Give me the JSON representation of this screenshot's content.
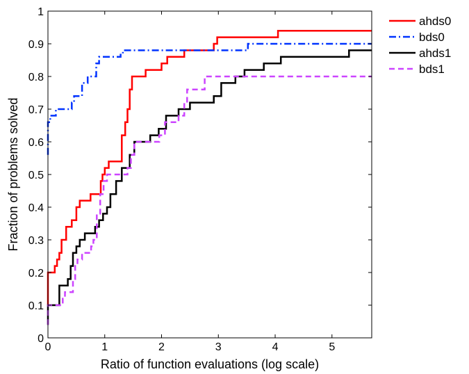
{
  "chart_data": {
    "type": "line",
    "title": "",
    "xlabel": "Ratio of function evaluations (log scale)",
    "ylabel": "Fraction of problems solved",
    "xlim": [
      0,
      5.7
    ],
    "ylim": [
      0,
      1
    ],
    "x_ticks": [
      0,
      1,
      2,
      3,
      4,
      5
    ],
    "y_ticks": [
      0,
      0.1,
      0.2,
      0.3,
      0.4,
      0.5,
      0.6,
      0.7,
      0.8,
      0.9,
      1
    ],
    "x_tick_labels": [
      "0",
      "1",
      "2",
      "3",
      "4",
      "5"
    ],
    "y_tick_labels": [
      "0",
      "0.1",
      "0.2",
      "0.3",
      "0.4",
      "0.5",
      "0.6",
      "0.7",
      "0.8",
      "0.9",
      "1"
    ],
    "grid": false,
    "legend_position": "outside-top-right",
    "series": [
      {
        "name": "ahds0",
        "color": "#ff0000",
        "style": "solid",
        "points": [
          [
            0,
            0.1
          ],
          [
            0,
            0.2
          ],
          [
            0.12,
            0.2
          ],
          [
            0.12,
            0.22
          ],
          [
            0.16,
            0.22
          ],
          [
            0.16,
            0.24
          ],
          [
            0.2,
            0.24
          ],
          [
            0.2,
            0.26
          ],
          [
            0.24,
            0.26
          ],
          [
            0.24,
            0.3
          ],
          [
            0.32,
            0.3
          ],
          [
            0.32,
            0.34
          ],
          [
            0.42,
            0.34
          ],
          [
            0.42,
            0.36
          ],
          [
            0.5,
            0.36
          ],
          [
            0.5,
            0.4
          ],
          [
            0.56,
            0.4
          ],
          [
            0.56,
            0.42
          ],
          [
            0.75,
            0.42
          ],
          [
            0.75,
            0.44
          ],
          [
            0.93,
            0.44
          ],
          [
            0.93,
            0.48
          ],
          [
            0.96,
            0.48
          ],
          [
            0.96,
            0.5
          ],
          [
            1.0,
            0.5
          ],
          [
            1.0,
            0.52
          ],
          [
            1.07,
            0.52
          ],
          [
            1.07,
            0.54
          ],
          [
            1.3,
            0.54
          ],
          [
            1.3,
            0.62
          ],
          [
            1.36,
            0.62
          ],
          [
            1.36,
            0.66
          ],
          [
            1.4,
            0.66
          ],
          [
            1.4,
            0.7
          ],
          [
            1.44,
            0.7
          ],
          [
            1.44,
            0.76
          ],
          [
            1.48,
            0.76
          ],
          [
            1.48,
            0.8
          ],
          [
            1.72,
            0.8
          ],
          [
            1.72,
            0.82
          ],
          [
            2.0,
            0.82
          ],
          [
            2.0,
            0.84
          ],
          [
            2.1,
            0.84
          ],
          [
            2.1,
            0.86
          ],
          [
            2.4,
            0.86
          ],
          [
            2.4,
            0.88
          ],
          [
            2.92,
            0.88
          ],
          [
            2.92,
            0.9
          ],
          [
            2.98,
            0.9
          ],
          [
            2.98,
            0.92
          ],
          [
            4.05,
            0.92
          ],
          [
            4.05,
            0.94
          ],
          [
            5.7,
            0.94
          ]
        ]
      },
      {
        "name": "bds0",
        "color": "#0033ff",
        "style": "dashdot",
        "points": [
          [
            0,
            0.56
          ],
          [
            0,
            0.66
          ],
          [
            0.04,
            0.66
          ],
          [
            0.04,
            0.68
          ],
          [
            0.14,
            0.68
          ],
          [
            0.14,
            0.7
          ],
          [
            0.42,
            0.7
          ],
          [
            0.42,
            0.72
          ],
          [
            0.46,
            0.72
          ],
          [
            0.46,
            0.74
          ],
          [
            0.6,
            0.74
          ],
          [
            0.6,
            0.78
          ],
          [
            0.7,
            0.78
          ],
          [
            0.7,
            0.8
          ],
          [
            0.85,
            0.8
          ],
          [
            0.85,
            0.84
          ],
          [
            0.9,
            0.84
          ],
          [
            0.9,
            0.86
          ],
          [
            1.28,
            0.86
          ],
          [
            1.28,
            0.87
          ],
          [
            1.32,
            0.87
          ],
          [
            1.32,
            0.88
          ],
          [
            3.52,
            0.88
          ],
          [
            3.52,
            0.9
          ],
          [
            5.7,
            0.9
          ]
        ]
      },
      {
        "name": "ahds1",
        "color": "#000000",
        "style": "solid",
        "points": [
          [
            0,
            0.04
          ],
          [
            0,
            0.1
          ],
          [
            0.2,
            0.1
          ],
          [
            0.2,
            0.16
          ],
          [
            0.35,
            0.16
          ],
          [
            0.35,
            0.18
          ],
          [
            0.4,
            0.18
          ],
          [
            0.4,
            0.22
          ],
          [
            0.44,
            0.22
          ],
          [
            0.44,
            0.26
          ],
          [
            0.5,
            0.26
          ],
          [
            0.5,
            0.28
          ],
          [
            0.56,
            0.28
          ],
          [
            0.56,
            0.3
          ],
          [
            0.65,
            0.3
          ],
          [
            0.65,
            0.32
          ],
          [
            0.83,
            0.32
          ],
          [
            0.83,
            0.34
          ],
          [
            0.9,
            0.34
          ],
          [
            0.9,
            0.36
          ],
          [
            0.97,
            0.36
          ],
          [
            0.97,
            0.38
          ],
          [
            1.04,
            0.38
          ],
          [
            1.04,
            0.4
          ],
          [
            1.1,
            0.4
          ],
          [
            1.1,
            0.44
          ],
          [
            1.2,
            0.44
          ],
          [
            1.2,
            0.48
          ],
          [
            1.3,
            0.48
          ],
          [
            1.3,
            0.52
          ],
          [
            1.44,
            0.52
          ],
          [
            1.44,
            0.56
          ],
          [
            1.52,
            0.56
          ],
          [
            1.52,
            0.6
          ],
          [
            1.8,
            0.6
          ],
          [
            1.8,
            0.62
          ],
          [
            1.95,
            0.62
          ],
          [
            1.95,
            0.64
          ],
          [
            2.08,
            0.64
          ],
          [
            2.08,
            0.68
          ],
          [
            2.3,
            0.68
          ],
          [
            2.3,
            0.7
          ],
          [
            2.5,
            0.7
          ],
          [
            2.5,
            0.72
          ],
          [
            2.92,
            0.72
          ],
          [
            2.92,
            0.74
          ],
          [
            3.05,
            0.74
          ],
          [
            3.05,
            0.78
          ],
          [
            3.3,
            0.78
          ],
          [
            3.3,
            0.8
          ],
          [
            3.46,
            0.8
          ],
          [
            3.46,
            0.82
          ],
          [
            3.8,
            0.82
          ],
          [
            3.8,
            0.84
          ],
          [
            4.1,
            0.84
          ],
          [
            4.1,
            0.86
          ],
          [
            5.3,
            0.86
          ],
          [
            5.3,
            0.88
          ],
          [
            5.7,
            0.88
          ]
        ]
      },
      {
        "name": "bds1",
        "color": "#cc44ff",
        "style": "dashed",
        "points": [
          [
            0,
            0.04
          ],
          [
            0,
            0.1
          ],
          [
            0.26,
            0.1
          ],
          [
            0.26,
            0.12
          ],
          [
            0.3,
            0.12
          ],
          [
            0.3,
            0.14
          ],
          [
            0.44,
            0.14
          ],
          [
            0.44,
            0.18
          ],
          [
            0.48,
            0.18
          ],
          [
            0.48,
            0.22
          ],
          [
            0.52,
            0.22
          ],
          [
            0.52,
            0.24
          ],
          [
            0.6,
            0.24
          ],
          [
            0.6,
            0.26
          ],
          [
            0.76,
            0.26
          ],
          [
            0.76,
            0.28
          ],
          [
            0.8,
            0.28
          ],
          [
            0.8,
            0.3
          ],
          [
            0.86,
            0.3
          ],
          [
            0.86,
            0.38
          ],
          [
            0.92,
            0.38
          ],
          [
            0.92,
            0.44
          ],
          [
            0.98,
            0.44
          ],
          [
            0.98,
            0.48
          ],
          [
            1.04,
            0.48
          ],
          [
            1.04,
            0.5
          ],
          [
            1.4,
            0.5
          ],
          [
            1.4,
            0.52
          ],
          [
            1.46,
            0.52
          ],
          [
            1.46,
            0.56
          ],
          [
            1.52,
            0.56
          ],
          [
            1.52,
            0.6
          ],
          [
            1.96,
            0.6
          ],
          [
            1.96,
            0.62
          ],
          [
            2.06,
            0.62
          ],
          [
            2.06,
            0.66
          ],
          [
            2.3,
            0.66
          ],
          [
            2.3,
            0.68
          ],
          [
            2.4,
            0.68
          ],
          [
            2.4,
            0.72
          ],
          [
            2.45,
            0.72
          ],
          [
            2.45,
            0.76
          ],
          [
            2.76,
            0.76
          ],
          [
            2.76,
            0.8
          ],
          [
            5.7,
            0.8
          ]
        ]
      }
    ]
  }
}
